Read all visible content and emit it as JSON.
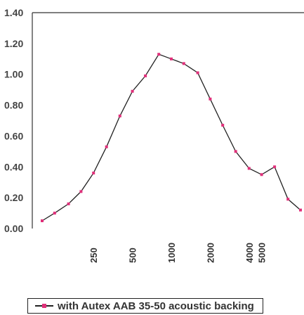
{
  "chart_data": {
    "type": "line",
    "title": "",
    "xlabel": "",
    "ylabel": "",
    "x_scale": "log",
    "ylim": [
      0,
      1.4
    ],
    "y_ticks": [
      "1.40",
      "1.20",
      "1.00",
      "0.80",
      "0.60",
      "0.40",
      "0.20",
      "0.00"
    ],
    "x_tick_labels": [
      "250",
      "500",
      "1000",
      "2000",
      "4000",
      "5000"
    ],
    "grid": false,
    "legend_position": "bottom",
    "series": [
      {
        "name": "with Autex AAB 35-50 acoustic backing",
        "color": "#222222",
        "marker_color": "#e0307a",
        "x": [
          100,
          125,
          160,
          200,
          250,
          315,
          400,
          500,
          630,
          800,
          1000,
          1250,
          1600,
          2000,
          2500,
          3150,
          4000,
          5000,
          6300,
          8000,
          10000
        ],
        "y": [
          0.05,
          0.1,
          0.16,
          0.24,
          0.36,
          0.53,
          0.73,
          0.89,
          0.99,
          1.13,
          1.1,
          1.07,
          1.01,
          0.84,
          0.67,
          0.5,
          0.39,
          0.35,
          0.4,
          0.19,
          0.12
        ]
      }
    ]
  }
}
